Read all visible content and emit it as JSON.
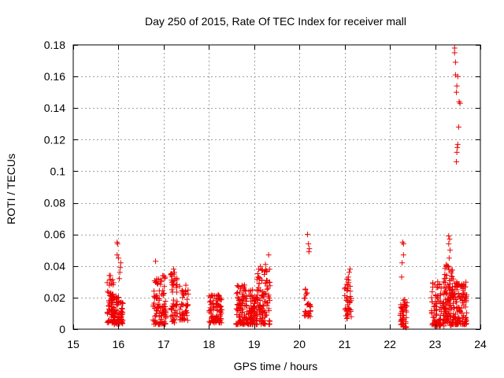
{
  "chart_data": {
    "type": "scatter",
    "title": "Day 250 of 2015, Rate Of TEC Index for receiver mall",
    "xlabel": "GPS time / hours",
    "ylabel": "ROTI / TECUs",
    "xlim": [
      15,
      24
    ],
    "ylim": [
      0,
      0.18
    ],
    "xticks": [
      15,
      16,
      17,
      18,
      19,
      20,
      21,
      22,
      23,
      24
    ],
    "xtick_labels": [
      "15",
      "16",
      "17",
      "18",
      "19",
      "20",
      "21",
      "22",
      "23",
      "24"
    ],
    "yticks": [
      0,
      0.02,
      0.04,
      0.06,
      0.08,
      0.1,
      0.12,
      0.14,
      0.16,
      0.18
    ],
    "ytick_labels": [
      "0",
      "0.02",
      "0.04",
      "0.06",
      "0.08",
      "0.1",
      "0.12",
      "0.14",
      "0.16",
      "0.18"
    ],
    "grid": true,
    "marker": "+",
    "color": "#ee0000",
    "clusters": [
      {
        "x": [
          15.75,
          15.9
        ],
        "y": [
          0.004,
          0.035
        ],
        "n": 70
      },
      {
        "x": [
          15.9,
          16.1
        ],
        "y": [
          0.003,
          0.022
        ],
        "n": 80
      },
      {
        "x": [
          16.75,
          16.95
        ],
        "y": [
          0.003,
          0.032
        ],
        "n": 60
      },
      {
        "x": [
          16.95,
          17.05
        ],
        "y": [
          0.003,
          0.034
        ],
        "n": 40
      },
      {
        "x": [
          17.15,
          17.3
        ],
        "y": [
          0.004,
          0.038
        ],
        "n": 50
      },
      {
        "x": [
          17.35,
          17.55
        ],
        "y": [
          0.005,
          0.028
        ],
        "n": 45
      },
      {
        "x": [
          18.0,
          18.3
        ],
        "y": [
          0.004,
          0.022
        ],
        "n": 90
      },
      {
        "x": [
          18.6,
          18.85
        ],
        "y": [
          0.003,
          0.028
        ],
        "n": 90
      },
      {
        "x": [
          18.85,
          19.05
        ],
        "y": [
          0.003,
          0.025
        ],
        "n": 80
      },
      {
        "x": [
          19.05,
          19.35
        ],
        "y": [
          0.003,
          0.04
        ],
        "n": 110
      },
      {
        "x": [
          20.1,
          20.25
        ],
        "y": [
          0.008,
          0.026
        ],
        "n": 30
      },
      {
        "x": [
          21.0,
          21.15
        ],
        "y": [
          0.006,
          0.035
        ],
        "n": 40
      },
      {
        "x": [
          22.22,
          22.38
        ],
        "y": [
          0.001,
          0.02
        ],
        "n": 50
      },
      {
        "x": [
          22.92,
          23.2
        ],
        "y": [
          0.002,
          0.03
        ],
        "n": 90
      },
      {
        "x": [
          23.2,
          23.4
        ],
        "y": [
          0.002,
          0.042
        ],
        "n": 100
      },
      {
        "x": [
          23.4,
          23.7
        ],
        "y": [
          0.003,
          0.03
        ],
        "n": 120
      }
    ],
    "points": [
      {
        "x": 15.97,
        "y": 0.055
      },
      {
        "x": 15.98,
        "y": 0.054
      },
      {
        "x": 15.97,
        "y": 0.047
      },
      {
        "x": 16.0,
        "y": 0.045
      },
      {
        "x": 16.05,
        "y": 0.042
      },
      {
        "x": 16.04,
        "y": 0.039
      },
      {
        "x": 16.03,
        "y": 0.036
      },
      {
        "x": 16.02,
        "y": 0.032
      },
      {
        "x": 16.82,
        "y": 0.043
      },
      {
        "x": 17.22,
        "y": 0.038
      },
      {
        "x": 17.25,
        "y": 0.032
      },
      {
        "x": 19.32,
        "y": 0.047
      },
      {
        "x": 19.25,
        "y": 0.041
      },
      {
        "x": 19.1,
        "y": 0.038
      },
      {
        "x": 20.18,
        "y": 0.06
      },
      {
        "x": 20.2,
        "y": 0.054
      },
      {
        "x": 20.22,
        "y": 0.051
      },
      {
        "x": 20.21,
        "y": 0.049
      },
      {
        "x": 21.12,
        "y": 0.038
      },
      {
        "x": 21.1,
        "y": 0.036
      },
      {
        "x": 21.08,
        "y": 0.033
      },
      {
        "x": 22.28,
        "y": 0.055
      },
      {
        "x": 22.3,
        "y": 0.054
      },
      {
        "x": 22.3,
        "y": 0.047
      },
      {
        "x": 22.27,
        "y": 0.042
      },
      {
        "x": 22.26,
        "y": 0.033
      },
      {
        "x": 23.3,
        "y": 0.059
      },
      {
        "x": 23.32,
        "y": 0.057
      },
      {
        "x": 23.3,
        "y": 0.054
      },
      {
        "x": 23.33,
        "y": 0.05
      },
      {
        "x": 23.31,
        "y": 0.045
      },
      {
        "x": 23.28,
        "y": 0.04
      },
      {
        "x": 23.43,
        "y": 0.178
      },
      {
        "x": 23.43,
        "y": 0.175
      },
      {
        "x": 23.45,
        "y": 0.169
      },
      {
        "x": 23.45,
        "y": 0.161
      },
      {
        "x": 23.5,
        "y": 0.16
      },
      {
        "x": 23.48,
        "y": 0.154
      },
      {
        "x": 23.47,
        "y": 0.15
      },
      {
        "x": 23.53,
        "y": 0.144
      },
      {
        "x": 23.55,
        "y": 0.143
      },
      {
        "x": 23.52,
        "y": 0.128
      },
      {
        "x": 23.5,
        "y": 0.117
      },
      {
        "x": 23.49,
        "y": 0.115
      },
      {
        "x": 23.48,
        "y": 0.112
      },
      {
        "x": 23.47,
        "y": 0.106
      }
    ]
  }
}
